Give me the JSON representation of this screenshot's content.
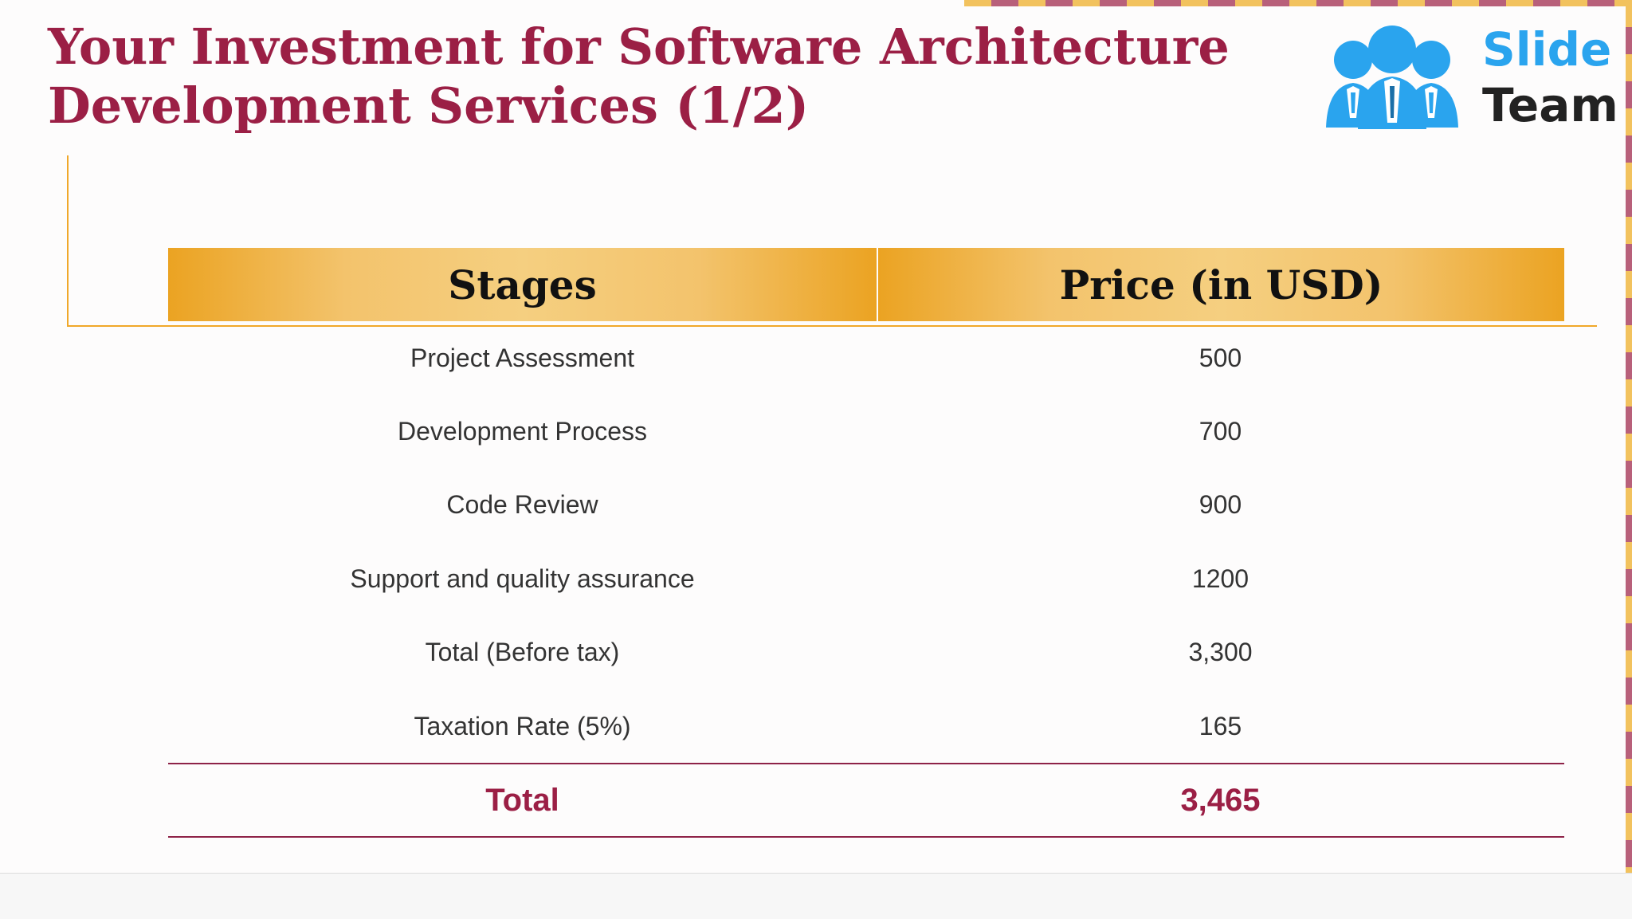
{
  "title": {
    "line1": "Your Investment for Software Architecture",
    "line2": "Development Services (1/2)"
  },
  "logo": {
    "word1": "Slide",
    "word2": "Team",
    "icon": "people-icon"
  },
  "table": {
    "headers": [
      "Stages",
      "Price (in USD)"
    ],
    "rows": [
      {
        "stage": "Project Assessment",
        "price": "500"
      },
      {
        "stage": "Development Process",
        "price": "700"
      },
      {
        "stage": "Code Review",
        "price": "900"
      },
      {
        "stage": "Support and quality assurance",
        "price": "1200"
      },
      {
        "stage": "Total (Before tax)",
        "price": "3,300"
      },
      {
        "stage": "Taxation Rate (5%)",
        "price": "165"
      }
    ],
    "total": {
      "label": "Total",
      "value": "3,465"
    }
  },
  "colors": {
    "title": "#9b1f45",
    "header_gradient_edge": "#eba322",
    "header_gradient_center": "#f5cf80",
    "accent_line": "#f0a82a",
    "total_rule": "#8e2348",
    "logo_blue": "#2aa4ee"
  }
}
